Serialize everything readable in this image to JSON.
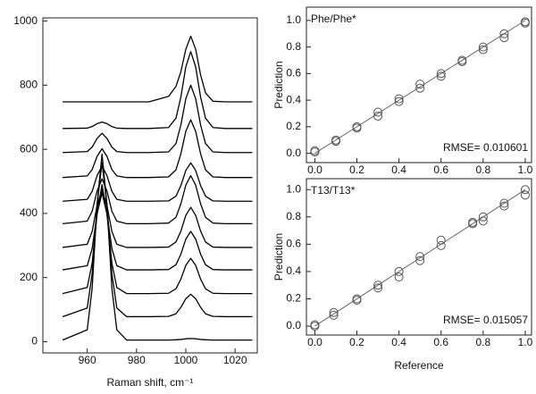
{
  "chart_data": [
    {
      "type": "line",
      "xlabel": "Raman shift, cm⁻¹",
      "x": [
        950,
        960,
        962,
        964,
        966,
        968,
        970,
        972,
        976,
        985,
        993,
        996,
        998,
        1000,
        1002,
        1004,
        1006,
        1008,
        1011,
        1016,
        1027
      ],
      "xlim": [
        942,
        1029
      ],
      "xticks": [
        960,
        980,
        1000,
        1020
      ],
      "ylim": [
        -35,
        1010
      ],
      "yticks": [
        0,
        200,
        400,
        600,
        800,
        1000
      ],
      "series": [
        {
          "color": "#000000",
          "values": [
            5,
            37,
            167,
            428,
            585,
            428,
            167,
            37,
            5,
            5,
            5,
            6,
            7,
            9,
            10,
            9,
            7,
            6,
            5,
            5,
            5
          ]
        },
        {
          "color": "#000000",
          "values": [
            78,
            105,
            212,
            428,
            558,
            428,
            212,
            105,
            78,
            78,
            79,
            87,
            107,
            134,
            148,
            134,
            107,
            87,
            79,
            78,
            78
          ]
        },
        {
          "color": "#000000",
          "values": [
            150,
            169,
            245,
            398,
            490,
            398,
            245,
            169,
            150,
            150,
            151,
            165,
            195,
            238,
            260,
            238,
            195,
            165,
            151,
            150,
            150
          ]
        },
        {
          "color": "#000000",
          "values": [
            224,
            237,
            291,
            399,
            464,
            399,
            291,
            237,
            224,
            224,
            225,
            240,
            273,
            320,
            344,
            320,
            273,
            240,
            225,
            224,
            224
          ]
        },
        {
          "color": "#000000",
          "values": [
            294,
            304,
            344,
            425,
            474,
            425,
            344,
            304,
            294,
            294,
            295,
            311,
            345,
            394,
            419,
            394,
            345,
            311,
            295,
            294,
            294
          ]
        },
        {
          "color": "#000000",
          "values": [
            368,
            376,
            407,
            470,
            508,
            470,
            407,
            376,
            368,
            368,
            370,
            388,
            430,
            488,
            518,
            488,
            430,
            388,
            370,
            368,
            368
          ]
        },
        {
          "color": "#000000",
          "values": [
            438,
            444,
            469,
            518,
            548,
            518,
            469,
            444,
            438,
            438,
            439,
            454,
            487,
            534,
            558,
            534,
            487,
            454,
            439,
            438,
            438
          ]
        },
        {
          "color": "#000000",
          "values": [
            512,
            517,
            537,
            578,
            602,
            578,
            537,
            517,
            512,
            512,
            514,
            536,
            586,
            656,
            692,
            656,
            586,
            536,
            514,
            512,
            512
          ]
        },
        {
          "color": "#000000",
          "values": [
            590,
            593,
            607,
            634,
            650,
            634,
            607,
            593,
            590,
            590,
            592,
            618,
            676,
            758,
            800,
            758,
            676,
            618,
            592,
            590,
            590
          ]
        },
        {
          "color": "#000000",
          "values": [
            665,
            666,
            671,
            680,
            685,
            680,
            671,
            666,
            665,
            665,
            668,
            697,
            763,
            857,
            905,
            857,
            763,
            697,
            668,
            665,
            665
          ]
        },
        {
          "color": "#000000",
          "values": [
            748,
            748,
            748,
            748,
            748,
            748,
            748,
            748,
            748,
            748,
            765,
            796,
            842,
            912,
            953,
            912,
            832,
            776,
            750,
            748,
            748
          ]
        }
      ]
    },
    {
      "type": "scatter",
      "ylabel": "Prediction",
      "label": "Phe/Phe*",
      "note": "RMSE= 0.010601",
      "xlim": [
        -0.04,
        1.03
      ],
      "ylim": [
        -0.07,
        1.1
      ],
      "xticks": [
        {
          "value": 0,
          "label": "0.0"
        },
        0.2,
        0.4,
        0.6,
        0.8,
        {
          "value": 1,
          "label": "1.0"
        }
      ],
      "yticks": [
        {
          "value": 0,
          "label": "0.0"
        },
        0.2,
        0.4,
        0.6,
        0.8,
        {
          "value": 1,
          "label": "1.0"
        }
      ],
      "fit": {
        "color": "#666666",
        "x": [
          0,
          1
        ],
        "values": [
          0,
          1
        ]
      },
      "series": [
        {
          "color": "#555555",
          "x": [
            0,
            0,
            0.1,
            0.1,
            0.2,
            0.2,
            0.3,
            0.3,
            0.4,
            0.4,
            0.5,
            0.5,
            0.6,
            0.6,
            0.7,
            0.7,
            0.8,
            0.8,
            0.9,
            0.9,
            1,
            1
          ],
          "values": [
            0.01,
            0.02,
            0.09,
            0.1,
            0.19,
            0.2,
            0.28,
            0.31,
            0.39,
            0.41,
            0.49,
            0.52,
            0.58,
            0.6,
            0.69,
            0.7,
            0.78,
            0.8,
            0.87,
            0.9,
            0.98,
            0.99
          ]
        }
      ]
    },
    {
      "type": "scatter",
      "ylabel": "Prediction",
      "xlabel": "Reference",
      "label": "T13/T13*",
      "note": "RMSE= 0.015057",
      "xlim": [
        -0.04,
        1.03
      ],
      "ylim": [
        -0.065,
        1.08
      ],
      "xticks": [
        {
          "value": 0,
          "label": "0.0"
        },
        0.2,
        0.4,
        0.6,
        0.8,
        {
          "value": 1,
          "label": "1.0"
        }
      ],
      "yticks": [
        {
          "value": 0,
          "label": "0.0"
        },
        0.2,
        0.4,
        0.6,
        0.8,
        {
          "value": 1,
          "label": "1.0"
        }
      ],
      "fit": {
        "color": "#666666",
        "x": [
          0,
          1
        ],
        "values": [
          0,
          1
        ]
      },
      "series": [
        {
          "color": "#555555",
          "x": [
            0,
            0,
            0.09,
            0.09,
            0.2,
            0.2,
            0.3,
            0.3,
            0.4,
            0.4,
            0.5,
            0.5,
            0.6,
            0.6,
            0.75,
            0.75,
            0.8,
            0.8,
            0.9,
            0.9,
            1,
            1
          ],
          "values": [
            0,
            0.01,
            0.08,
            0.1,
            0.19,
            0.2,
            0.28,
            0.3,
            0.36,
            0.4,
            0.48,
            0.51,
            0.59,
            0.63,
            0.75,
            0.76,
            0.77,
            0.8,
            0.88,
            0.9,
            0.96,
            1
          ]
        }
      ]
    }
  ]
}
